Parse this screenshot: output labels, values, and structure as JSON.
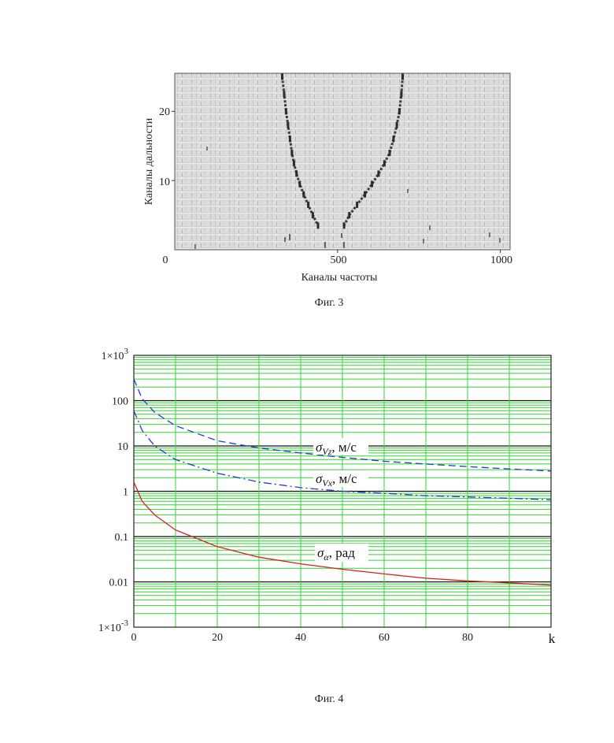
{
  "figure3": {
    "caption": "Фиг. 3",
    "chart_data": {
      "type": "scatter",
      "title": "",
      "xlabel": "Каналы частоты",
      "ylabel": "Каналы дальности",
      "xlim": [
        0,
        1030
      ],
      "ylim": [
        0,
        25.5
      ],
      "x_ticks": [
        "0",
        "500",
        "1000"
      ],
      "y_ticks": [
        "10",
        "20"
      ],
      "grid": false,
      "series": [
        {
          "x": [
            330,
            336,
            342,
            348,
            354,
            360,
            366,
            374,
            384,
            396,
            410,
            424,
            440
          ],
          "y": [
            25,
            22.5,
            20,
            18,
            16,
            14,
            12.5,
            11,
            9.5,
            8,
            6.5,
            5,
            3.5
          ]
        },
        {
          "x": [
            700,
            696,
            690,
            682,
            672,
            660,
            644,
            626,
            606,
            584,
            560,
            536,
            520
          ],
          "y": [
            25,
            22.5,
            20,
            18,
            16,
            14,
            12.5,
            11,
            9.5,
            8,
            6.5,
            5,
            3.5
          ]
        }
      ]
    }
  },
  "figure4": {
    "caption": "Фиг. 4",
    "chart_data": {
      "type": "line",
      "title": "",
      "xlabel": "k",
      "ylabel": "",
      "x_scale": "linear",
      "y_scale": "log",
      "xlim": [
        0,
        100
      ],
      "ylim": [
        0.001,
        1000
      ],
      "x_ticks": [
        "0",
        "20",
        "40",
        "60",
        "80"
      ],
      "y_ticks": [
        {
          "base": "1×10",
          "exp": "3"
        },
        {
          "base": "100",
          "exp": ""
        },
        {
          "base": "10",
          "exp": ""
        },
        {
          "base": "1",
          "exp": ""
        },
        {
          "base": "0.1",
          "exp": ""
        },
        {
          "base": "0.01",
          "exp": ""
        },
        {
          "base": "1×10",
          "exp": "-3"
        }
      ],
      "grid": true,
      "x": [
        0,
        2,
        5,
        10,
        20,
        30,
        40,
        50,
        60,
        70,
        80,
        90,
        100
      ],
      "series": [
        {
          "label": "σVz, м/с",
          "color": "#1f3ad6",
          "values": [
            300,
            110,
            55,
            28,
            13,
            9,
            7,
            5.6,
            4.6,
            4,
            3.5,
            3.1,
            2.8
          ]
        },
        {
          "label": "σVx, м/с",
          "color": "#1f3ad6",
          "values": [
            60,
            22,
            10,
            5,
            2.5,
            1.6,
            1.2,
            1.0,
            0.9,
            0.8,
            0.75,
            0.7,
            0.65
          ]
        },
        {
          "label": "σα, рад",
          "color": "#d42020",
          "values": [
            1.6,
            0.6,
            0.3,
            0.14,
            0.06,
            0.035,
            0.025,
            0.019,
            0.015,
            0.012,
            0.0105,
            0.0095,
            0.0085
          ]
        }
      ],
      "annotations": [
        {
          "sym": "σ",
          "sub": "Vz",
          "unit": ", м/с"
        },
        {
          "sym": "σ",
          "sub": "Vx",
          "unit": ", м/с"
        },
        {
          "sym": "σ",
          "sub": "α",
          "unit": ", рад"
        }
      ]
    }
  }
}
